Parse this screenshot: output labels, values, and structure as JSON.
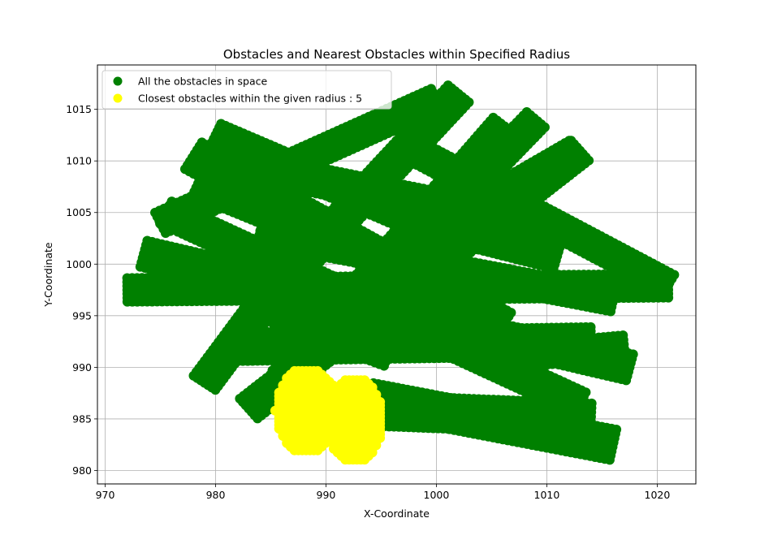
{
  "chart_data": {
    "type": "scatter",
    "title": "Obstacles and Nearest Obstacles within Specified Radius",
    "xlabel": "X-Coordinate",
    "ylabel": "Y-Coordinate",
    "xlim": [
      969.3,
      1023.5
    ],
    "ylim": [
      978.7,
      1019.3
    ],
    "xticks": [
      970,
      980,
      990,
      1000,
      1010,
      1020
    ],
    "yticks": [
      980,
      985,
      990,
      995,
      1000,
      1005,
      1010,
      1015
    ],
    "grid": true,
    "legend_position": "upper-left",
    "series": [
      {
        "name": "All the obstacles in space",
        "color": "#008000",
        "bands": [
          {
            "from": [
              972.0,
              997.5
            ],
            "to": [
              1021.0,
              997.9
            ],
            "width": 2.3
          },
          {
            "from": [
              973.5,
              1001.0
            ],
            "to": [
              1017.5,
              990.0
            ],
            "width": 2.6
          },
          {
            "from": [
              975.5,
              1005.0
            ],
            "to": [
              1013.0,
              986.5
            ],
            "width": 2.4
          },
          {
            "from": [
              978.0,
              1010.5
            ],
            "to": [
              1006.0,
              994.0
            ],
            "width": 3.0
          },
          {
            "from": [
              980.0,
              1012.5
            ],
            "to": [
              1003.0,
              1002.0
            ],
            "width": 2.4
          },
          {
            "from": [
              975.0,
              1004.0
            ],
            "to": [
              1000.0,
              1016.0
            ],
            "width": 2.2
          },
          {
            "from": [
              985.0,
              997.0
            ],
            "to": [
              1002.0,
              1016.5
            ],
            "width": 2.5
          },
          {
            "from": [
              983.0,
              986.0
            ],
            "to": [
              1013.0,
              1011.0
            ],
            "width": 2.5
          },
          {
            "from": [
              986.0,
              989.0
            ],
            "to": [
              1006.0,
              1013.5
            ],
            "width": 2.2
          },
          {
            "from": [
              990.0,
              993.0
            ],
            "to": [
              1009.0,
              1014.0
            ],
            "width": 2.2
          },
          {
            "from": [
              996.0,
              1001.0
            ],
            "to": [
              1012.5,
              1011.2
            ],
            "width": 1.8
          },
          {
            "from": [
              998.0,
              1011.0
            ],
            "to": [
              1021.0,
              998.0
            ],
            "width": 2.2
          },
          {
            "from": [
              984.0,
              1003.0
            ],
            "to": [
              1016.0,
              996.5
            ],
            "width": 2.2
          },
          {
            "from": [
              990.0,
              986.0
            ],
            "to": [
              1014.0,
              985.0
            ],
            "width": 3.0
          },
          {
            "from": [
              994.0,
              987.0
            ],
            "to": [
              1016.0,
              982.5
            ],
            "width": 3.0
          },
          {
            "from": [
              982.0,
              992.0
            ],
            "to": [
              1014.0,
              992.5
            ],
            "width": 2.8
          },
          {
            "from": [
              979.0,
              988.5
            ],
            "to": [
              987.0,
              1000.0
            ],
            "width": 2.4
          },
          {
            "from": [
              986.0,
              996.0
            ],
            "to": [
              996.0,
              992.0
            ],
            "width": 4.0
          },
          {
            "from": [
              1006.0,
              991.0
            ],
            "to": [
              1017.0,
              992.0
            ],
            "width": 2.2
          },
          {
            "from": [
              1000.0,
              1004.0
            ],
            "to": [
              1011.0,
              1001.0
            ],
            "width": 3.0
          },
          {
            "from": [
              978.5,
              1008.0
            ],
            "to": [
              990.0,
              1003.0
            ],
            "width": 3.0
          },
          {
            "from": [
              985.0,
              1009.0
            ],
            "to": [
              999.0,
              1006.0
            ],
            "width": 2.5
          }
        ]
      },
      {
        "name": "Closest obstacles within the given radius : 5",
        "color": "#ffff00",
        "regions": [
          {
            "center": [
              988.3,
              985.8
            ],
            "rx": 2.9,
            "ry": 4.2
          },
          {
            "center": [
              992.6,
              984.9
            ],
            "rx": 2.6,
            "ry": 4.2
          }
        ]
      }
    ]
  }
}
